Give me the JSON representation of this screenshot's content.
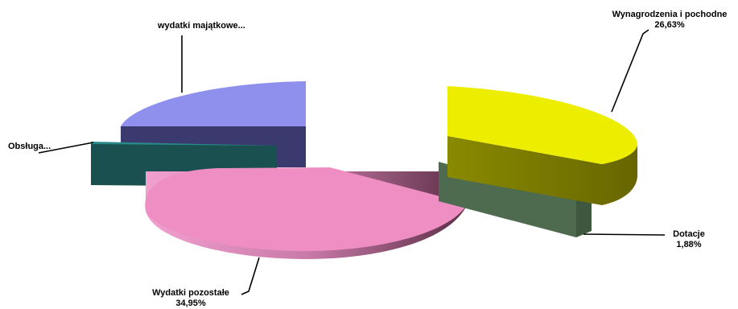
{
  "chart_data": {
    "type": "pie",
    "title": "",
    "slices": [
      {
        "name": "Wynagrodzenia i pochodne",
        "value": 26.63,
        "label": "26,63%",
        "color": "#eded00"
      },
      {
        "name": "Dotacje",
        "value": 1.88,
        "label": "1,88%",
        "color": "#ccffcc"
      },
      {
        "name": "Wydatki pozostałe",
        "value": 34.95,
        "label": "34,95%",
        "color": "#ee8ec3"
      },
      {
        "name": "Obsługa...",
        "value": null,
        "label": "",
        "color": "#1a5f5f"
      },
      {
        "name": "wydatki majątkowe...",
        "value": null,
        "label": "",
        "color": "#8f8fee"
      }
    ],
    "legend": "none",
    "style": "exploded-3d"
  }
}
